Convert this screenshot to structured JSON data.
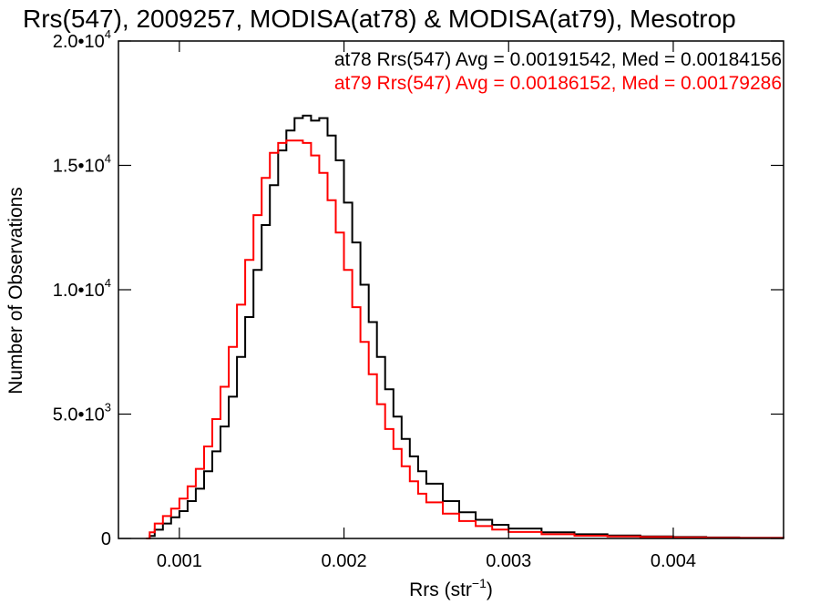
{
  "chart_data": {
    "type": "line",
    "title": "Rrs(547), 2009257, MODISA(at78) & MODISA(at79), Mesotrop",
    "xlabel": "Rrs (str",
    "xlabel_sup": "−1",
    "xlabel_close": ")",
    "ylabel": "Number of Observations",
    "xlim": [
      0.00063,
      0.00467
    ],
    "ylim": [
      0,
      20000
    ],
    "x_ticks": [
      {
        "value": 0.001,
        "label": "0.001"
      },
      {
        "value": 0.002,
        "label": "0.002"
      },
      {
        "value": 0.003,
        "label": "0.003"
      },
      {
        "value": 0.004,
        "label": "0.004"
      }
    ],
    "y_ticks": [
      {
        "value": 0,
        "label": "0",
        "exp": ""
      },
      {
        "value": 5000,
        "label": "5.0•10",
        "exp": "3"
      },
      {
        "value": 10000,
        "label": "1.0•10",
        "exp": "4"
      },
      {
        "value": 15000,
        "label": "1.5•10",
        "exp": "4"
      },
      {
        "value": 20000,
        "label": "2.0•10",
        "exp": "4"
      }
    ],
    "annotations": [
      {
        "text": "at78 Rrs(547) Avg = 0.00191542, Med = 0.00184156",
        "color": "#000000"
      },
      {
        "text": "at79 Rrs(547) Avg = 0.00186152, Med = 0.00179286",
        "color": "#ff0000"
      }
    ],
    "series": [
      {
        "color": "#000000",
        "x": [
          0.0008,
          0.00082,
          0.00085,
          0.0009,
          0.00095,
          0.001,
          0.00105,
          0.0011,
          0.00115,
          0.0012,
          0.00125,
          0.0013,
          0.00135,
          0.0014,
          0.00145,
          0.0015,
          0.00155,
          0.0016,
          0.00165,
          0.0017,
          0.00175,
          0.0018,
          0.00185,
          0.0019,
          0.00195,
          0.002,
          0.00205,
          0.0021,
          0.00215,
          0.0022,
          0.00225,
          0.0023,
          0.00235,
          0.0024,
          0.00245,
          0.0025,
          0.0026,
          0.0027,
          0.0028,
          0.0029,
          0.003,
          0.0032,
          0.0034,
          0.0036,
          0.0038,
          0.004,
          0.0042,
          0.0044,
          0.00467
        ],
        "y": [
          0,
          100,
          350,
          600,
          850,
          1100,
          1500,
          2000,
          2700,
          3500,
          4500,
          5700,
          7300,
          8900,
          10800,
          12600,
          14200,
          15600,
          16400,
          16900,
          17000,
          16800,
          16900,
          16200,
          15200,
          13500,
          11900,
          10200,
          8700,
          7300,
          6000,
          4900,
          4000,
          3300,
          2700,
          2200,
          1500,
          1050,
          750,
          550,
          400,
          250,
          170,
          120,
          80,
          60,
          40,
          30,
          20
        ]
      },
      {
        "color": "#ff0000",
        "x": [
          0.0008,
          0.00082,
          0.00085,
          0.0009,
          0.00095,
          0.001,
          0.00105,
          0.0011,
          0.00115,
          0.0012,
          0.00125,
          0.0013,
          0.00135,
          0.0014,
          0.00145,
          0.0015,
          0.00155,
          0.0016,
          0.00165,
          0.0017,
          0.00175,
          0.0018,
          0.00185,
          0.0019,
          0.00195,
          0.002,
          0.00205,
          0.0021,
          0.00215,
          0.0022,
          0.00225,
          0.0023,
          0.00235,
          0.0024,
          0.00245,
          0.0025,
          0.0026,
          0.0027,
          0.0028,
          0.0029,
          0.003,
          0.0032,
          0.0034,
          0.0036,
          0.0038,
          0.004,
          0.0042,
          0.0044,
          0.00467
        ],
        "y": [
          0,
          250,
          600,
          900,
          1200,
          1600,
          2100,
          2800,
          3700,
          4800,
          6100,
          7700,
          9400,
          11200,
          13000,
          14500,
          15500,
          15900,
          16000,
          16000,
          15900,
          15400,
          14700,
          13600,
          12300,
          10800,
          9300,
          7900,
          6600,
          5400,
          4400,
          3600,
          2900,
          2300,
          1800,
          1450,
          1000,
          700,
          500,
          360,
          260,
          170,
          110,
          80,
          60,
          40,
          30,
          20,
          15
        ]
      }
    ]
  }
}
